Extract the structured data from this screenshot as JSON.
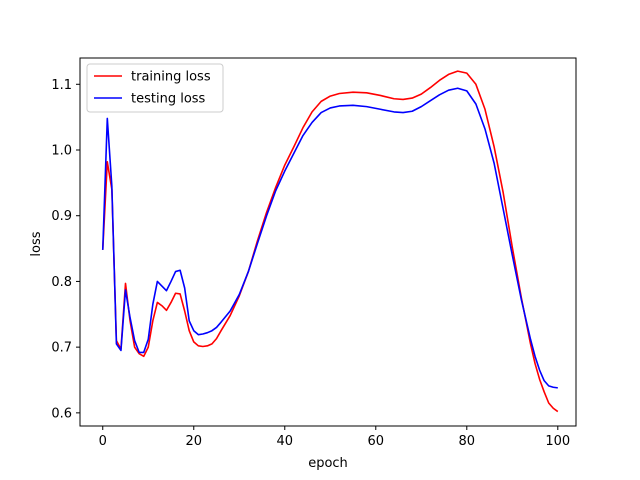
{
  "chart_data": {
    "type": "line",
    "title": "",
    "xlabel": "epoch",
    "ylabel": "loss",
    "xlim": [
      -5,
      104
    ],
    "ylim": [
      0.58,
      1.14
    ],
    "xticks": [
      0,
      20,
      40,
      60,
      80,
      100
    ],
    "yticks": [
      0.6,
      0.7,
      0.8,
      0.9,
      1.0,
      1.1
    ],
    "xtick_labels": [
      "0",
      "20",
      "40",
      "60",
      "80",
      "100"
    ],
    "ytick_labels": [
      "0.6",
      "0.7",
      "0.8",
      "0.9",
      "1.0",
      "1.1"
    ],
    "grid": false,
    "legend_position": "top-left",
    "series": [
      {
        "name": "training loss",
        "color": "#ff0000",
        "points": [
          [
            0,
            0.848
          ],
          [
            1,
            0.982
          ],
          [
            2,
            0.94
          ],
          [
            3,
            0.71
          ],
          [
            4,
            0.697
          ],
          [
            5,
            0.797
          ],
          [
            6,
            0.74
          ],
          [
            7,
            0.7
          ],
          [
            8,
            0.69
          ],
          [
            9,
            0.686
          ],
          [
            10,
            0.7
          ],
          [
            11,
            0.74
          ],
          [
            12,
            0.768
          ],
          [
            13,
            0.763
          ],
          [
            14,
            0.756
          ],
          [
            15,
            0.768
          ],
          [
            16,
            0.782
          ],
          [
            17,
            0.781
          ],
          [
            18,
            0.755
          ],
          [
            19,
            0.725
          ],
          [
            20,
            0.708
          ],
          [
            21,
            0.702
          ],
          [
            22,
            0.701
          ],
          [
            23,
            0.702
          ],
          [
            24,
            0.705
          ],
          [
            25,
            0.713
          ],
          [
            26,
            0.725
          ],
          [
            28,
            0.748
          ],
          [
            30,
            0.778
          ],
          [
            32,
            0.815
          ],
          [
            34,
            0.862
          ],
          [
            36,
            0.905
          ],
          [
            38,
            0.943
          ],
          [
            40,
            0.977
          ],
          [
            42,
            1.005
          ],
          [
            44,
            1.034
          ],
          [
            46,
            1.058
          ],
          [
            48,
            1.074
          ],
          [
            50,
            1.082
          ],
          [
            52,
            1.086
          ],
          [
            55,
            1.088
          ],
          [
            58,
            1.087
          ],
          [
            61,
            1.083
          ],
          [
            64,
            1.078
          ],
          [
            66,
            1.077
          ],
          [
            68,
            1.079
          ],
          [
            70,
            1.085
          ],
          [
            72,
            1.095
          ],
          [
            74,
            1.106
          ],
          [
            76,
            1.115
          ],
          [
            78,
            1.12
          ],
          [
            80,
            1.117
          ],
          [
            82,
            1.1
          ],
          [
            84,
            1.062
          ],
          [
            86,
            1.005
          ],
          [
            88,
            0.935
          ],
          [
            90,
            0.852
          ],
          [
            92,
            0.775
          ],
          [
            94,
            0.705
          ],
          [
            95,
            0.675
          ],
          [
            96,
            0.651
          ],
          [
            97,
            0.632
          ],
          [
            98,
            0.615
          ],
          [
            99,
            0.607
          ],
          [
            100,
            0.602
          ]
        ]
      },
      {
        "name": "testing loss",
        "color": "#0000ff",
        "points": [
          [
            0,
            0.848
          ],
          [
            1,
            1.048
          ],
          [
            2,
            0.945
          ],
          [
            3,
            0.705
          ],
          [
            4,
            0.695
          ],
          [
            5,
            0.787
          ],
          [
            6,
            0.745
          ],
          [
            7,
            0.71
          ],
          [
            8,
            0.692
          ],
          [
            9,
            0.692
          ],
          [
            10,
            0.712
          ],
          [
            11,
            0.765
          ],
          [
            12,
            0.8
          ],
          [
            13,
            0.793
          ],
          [
            14,
            0.786
          ],
          [
            15,
            0.8
          ],
          [
            16,
            0.815
          ],
          [
            17,
            0.817
          ],
          [
            18,
            0.79
          ],
          [
            19,
            0.74
          ],
          [
            20,
            0.725
          ],
          [
            21,
            0.719
          ],
          [
            22,
            0.72
          ],
          [
            23,
            0.722
          ],
          [
            24,
            0.725
          ],
          [
            25,
            0.73
          ],
          [
            26,
            0.738
          ],
          [
            28,
            0.755
          ],
          [
            30,
            0.78
          ],
          [
            32,
            0.815
          ],
          [
            34,
            0.858
          ],
          [
            36,
            0.9
          ],
          [
            38,
            0.938
          ],
          [
            40,
            0.968
          ],
          [
            42,
            0.995
          ],
          [
            44,
            1.022
          ],
          [
            46,
            1.042
          ],
          [
            48,
            1.057
          ],
          [
            50,
            1.064
          ],
          [
            52,
            1.067
          ],
          [
            55,
            1.068
          ],
          [
            58,
            1.066
          ],
          [
            61,
            1.062
          ],
          [
            64,
            1.058
          ],
          [
            66,
            1.057
          ],
          [
            68,
            1.059
          ],
          [
            70,
            1.066
          ],
          [
            72,
            1.075
          ],
          [
            74,
            1.084
          ],
          [
            76,
            1.091
          ],
          [
            78,
            1.094
          ],
          [
            80,
            1.09
          ],
          [
            82,
            1.07
          ],
          [
            84,
            1.032
          ],
          [
            86,
            0.98
          ],
          [
            88,
            0.91
          ],
          [
            90,
            0.84
          ],
          [
            92,
            0.772
          ],
          [
            94,
            0.712
          ],
          [
            95,
            0.686
          ],
          [
            96,
            0.665
          ],
          [
            97,
            0.649
          ],
          [
            98,
            0.641
          ],
          [
            99,
            0.639
          ],
          [
            100,
            0.638
          ]
        ]
      }
    ]
  }
}
